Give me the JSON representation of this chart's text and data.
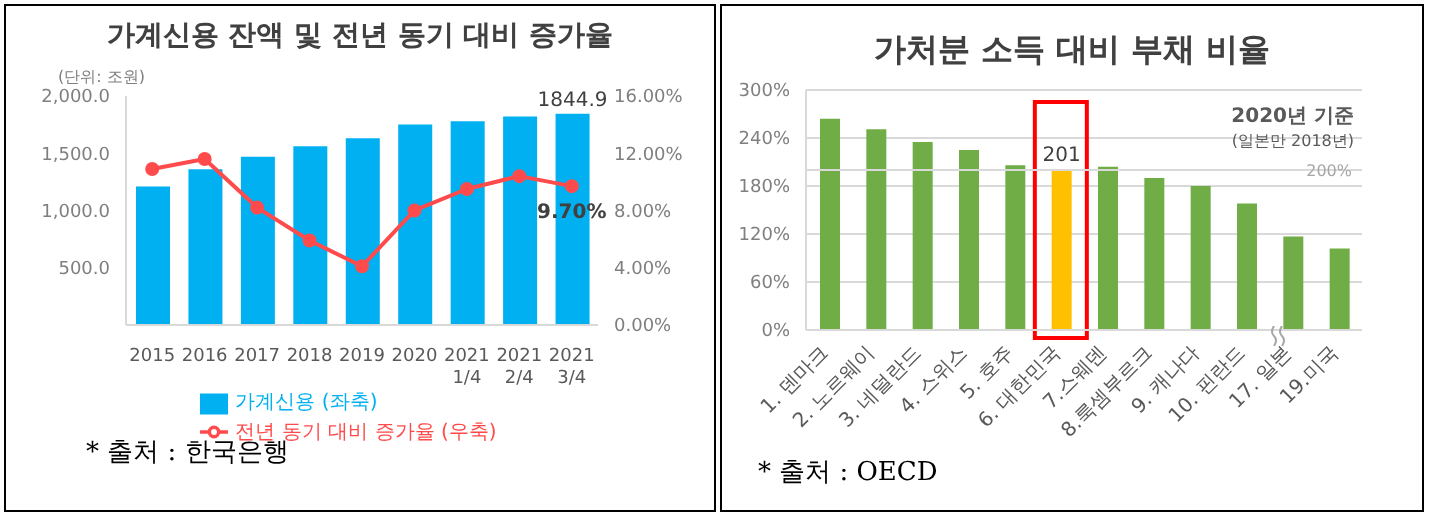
{
  "chart_data": [
    {
      "type": "bar",
      "title": "가계신용 잔액 및 전년 동기 대비 증가율",
      "ylabel": "(단위: 조원)",
      "categories": [
        "2015",
        "2016",
        "2017",
        "2018",
        "2019",
        "2020",
        "2021 1/4",
        "2021 2/4",
        "2021 3/4"
      ],
      "series": [
        {
          "name": "가계신용 (좌축)",
          "type": "bar",
          "color": "#00b0f0",
          "values": [
            1210,
            1360,
            1470,
            1560,
            1630,
            1750,
            1780,
            1820,
            1844.9
          ],
          "value_labels": [
            null,
            null,
            null,
            null,
            null,
            null,
            null,
            null,
            "1844.9"
          ]
        },
        {
          "name": "전년 동기 대비 증가율 (우축)",
          "type": "line",
          "axis": "y2",
          "color": "#ff4b4b",
          "values": [
            10.9,
            11.6,
            8.2,
            5.9,
            4.1,
            8.0,
            9.5,
            10.4,
            9.7
          ],
          "value_labels": [
            null,
            null,
            null,
            null,
            null,
            null,
            null,
            null,
            "9.70%"
          ]
        }
      ],
      "ylim": [
        0,
        2000
      ],
      "yticks": [
        {
          "value": 0,
          "label": null
        },
        {
          "value": 500,
          "label": "500.0"
        },
        {
          "value": 1000,
          "label": "1,000.0"
        },
        {
          "value": 1500,
          "label": "1,500.0"
        },
        {
          "value": 2000,
          "label": "2,000.0"
        }
      ],
      "y2lim": [
        0,
        16
      ],
      "y2ticks": [
        {
          "value": 0,
          "label": "0.00%"
        },
        {
          "value": 4,
          "label": "4.00%"
        },
        {
          "value": 8,
          "label": "8.00%"
        },
        {
          "value": 12,
          "label": "12.00%"
        },
        {
          "value": 16,
          "label": "16.00%"
        }
      ],
      "grid": false,
      "legend": "bottom",
      "marker": "circle",
      "annotations": [
        "* 출처 : 한국은행"
      ]
    },
    {
      "type": "bar",
      "title": "가처분 소득 대비 부채 비율",
      "categories": [
        "1. 덴마크",
        "2. 노르웨이",
        "3. 네덜란드",
        "4. 스위스",
        "5. 호주",
        "6. 대한민국",
        "7.스웨덴",
        "8.룩셈부르크",
        "9. 캐나다",
        "10. 핀란드",
        "17. 일본",
        "19.미국"
      ],
      "values": [
        264,
        251,
        235,
        225,
        206,
        201,
        204,
        190,
        180,
        158,
        117,
        102
      ],
      "colors": [
        "#70ad47",
        "#70ad47",
        "#70ad47",
        "#70ad47",
        "#70ad47",
        "#ffc000",
        "#70ad47",
        "#70ad47",
        "#70ad47",
        "#70ad47",
        "#70ad47",
        "#70ad47"
      ],
      "value_labels": [
        null,
        null,
        null,
        null,
        null,
        "201",
        null,
        null,
        null,
        null,
        null,
        null
      ],
      "ylim": [
        0,
        300
      ],
      "yticks": [
        {
          "value": 0,
          "label": "0%"
        },
        {
          "value": 60,
          "label": "60%"
        },
        {
          "value": 120,
          "label": "120%"
        },
        {
          "value": 180,
          "label": "180%"
        },
        {
          "value": 240,
          "label": "240%"
        },
        {
          "value": 300,
          "label": "300%"
        }
      ],
      "grid": "y",
      "ref_lines": [
        {
          "axis": "y",
          "value": 200,
          "label": "200%",
          "color": "#d9d9d9"
        }
      ],
      "annotations": [
        "2020년 기준",
        "(일본만 2018년)",
        "* 출처 : OECD"
      ]
    }
  ]
}
